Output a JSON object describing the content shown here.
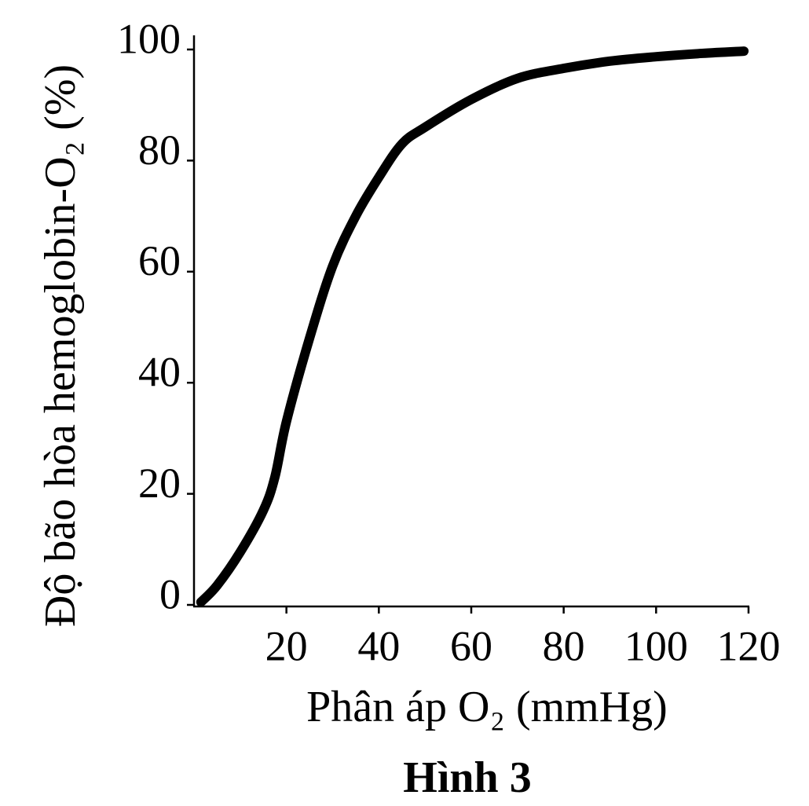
{
  "chart_data": {
    "type": "line",
    "caption": "Hình 3",
    "x_label": "Phân áp O₂ (mmHg)",
    "y_label": "Độ bão hòa hemoglobin-O₂ (%)",
    "x": [
      1.5,
      5,
      10,
      15,
      17.5,
      20,
      25,
      30,
      35,
      40,
      45,
      50,
      60,
      70,
      80,
      90,
      100,
      110,
      119
    ],
    "values": [
      0.5,
      3.5,
      9.5,
      17,
      23,
      33,
      48,
      61,
      70,
      77,
      83,
      86,
      91,
      94.8,
      96.6,
      97.9,
      98.7,
      99.3,
      99.7
    ],
    "color": "#000000",
    "xlim": [
      0,
      120
    ],
    "xticks": [
      20,
      40,
      60,
      80,
      100,
      120
    ],
    "ylim": [
      0,
      100
    ],
    "yticks": [
      0,
      20,
      40,
      60,
      80,
      100
    ],
    "grid": false
  }
}
